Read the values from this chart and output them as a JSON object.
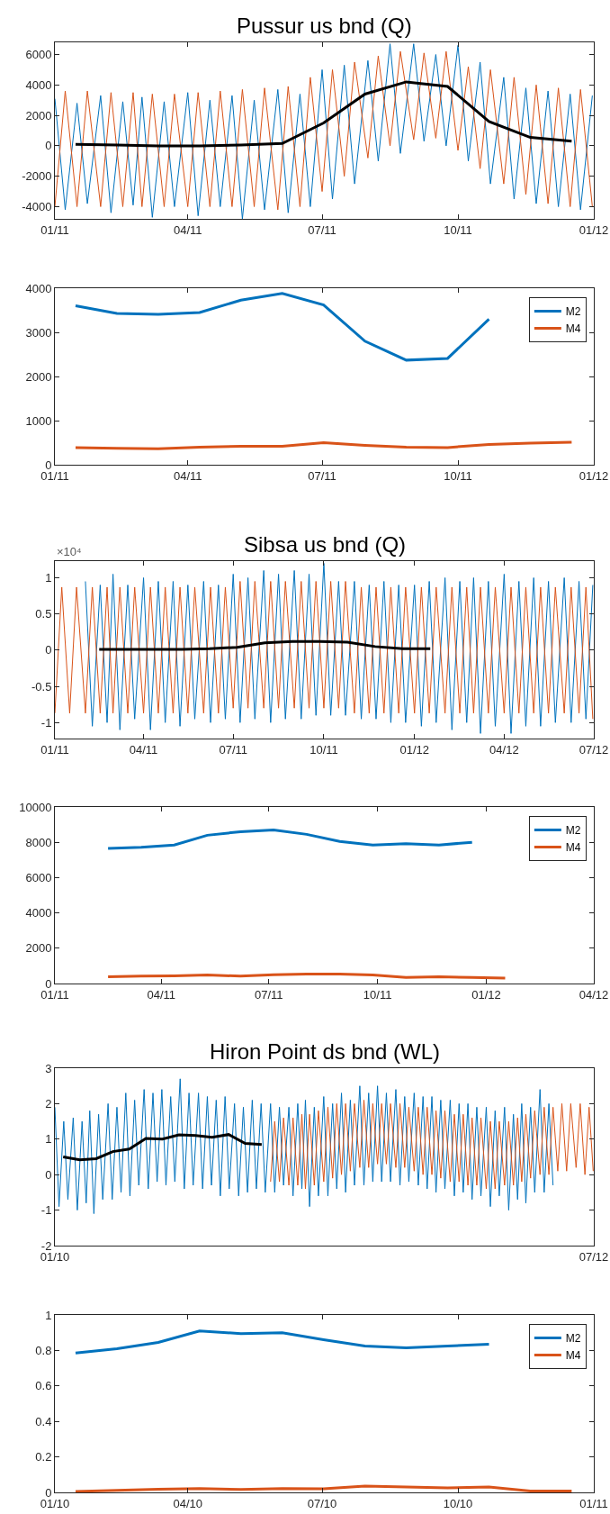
{
  "chart_data": [
    {
      "type": "line",
      "title": "Pussur us bnd (Q)",
      "x": [
        "2011-01-01",
        "2011-01-08",
        "2011-01-16",
        "2011-01-23",
        "2011-02-01",
        "2011-02-08",
        "2011-02-16",
        "2011-02-23",
        "2011-03-01",
        "2011-03-08",
        "2011-03-16",
        "2011-03-23",
        "2011-04-01",
        "2011-04-08",
        "2011-04-16",
        "2011-04-23",
        "2011-05-01",
        "2011-05-08",
        "2011-05-16",
        "2011-05-23",
        "2011-06-01",
        "2011-06-08",
        "2011-06-16",
        "2011-06-23",
        "2011-07-01",
        "2011-07-08",
        "2011-07-16",
        "2011-07-23",
        "2011-08-01",
        "2011-08-08",
        "2011-08-16",
        "2011-08-23",
        "2011-09-01",
        "2011-09-08",
        "2011-09-16",
        "2011-09-23",
        "2011-10-01",
        "2011-10-08",
        "2011-10-16",
        "2011-10-23",
        "2011-11-01",
        "2011-11-08",
        "2011-11-16",
        "2011-11-23",
        "2011-12-01",
        "2011-12-08",
        "2011-12-16",
        "2011-12-23",
        "2011-12-31"
      ],
      "series": [
        {
          "color": "#0072bd",
          "values": [
            3100,
            -4200,
            2800,
            -3800,
            3300,
            -4400,
            2900,
            -3900,
            3200,
            -4700,
            2900,
            -4000,
            3500,
            -4600,
            3000,
            -4000,
            3300,
            -4800,
            3000,
            -4200,
            3700,
            -4400,
            3400,
            -4000,
            5000,
            -3500,
            5300,
            -2500,
            5600,
            -1000,
            6700,
            -500,
            6700,
            300,
            6000,
            0,
            6600,
            -1000,
            5500,
            -2500,
            4500,
            -3500,
            3800,
            -3800,
            3600,
            -4000,
            3400,
            -4200,
            3300
          ]
        },
        {
          "color": "#d95319",
          "values": [
            -4000,
            3600,
            -4000,
            3600,
            -4000,
            3500,
            -4000,
            3500,
            -4000,
            3400,
            -4000,
            3400,
            -4000,
            3500,
            -4000,
            3600,
            -4000,
            3700,
            -4000,
            3800,
            -4200,
            3900,
            -4000,
            4500,
            -3000,
            5000,
            -2000,
            5500,
            -800,
            5900,
            0,
            6200,
            400,
            6100,
            500,
            6200,
            -300,
            5200,
            -1500,
            5000,
            -2500,
            4500,
            -3200,
            4000,
            -3800,
            3800,
            -4000,
            3700,
            -4000
          ]
        },
        {
          "color": "#000000",
          "x": [
            "2011-01-15",
            "2011-02-12",
            "2011-03-12",
            "2011-04-09",
            "2011-05-07",
            "2011-06-04",
            "2011-07-02",
            "2011-07-30",
            "2011-08-27",
            "2011-09-24",
            "2011-10-22",
            "2011-11-19",
            "2011-12-17"
          ],
          "values": [
            100,
            50,
            0,
            0,
            50,
            150,
            1500,
            3400,
            4200,
            3900,
            1600,
            550,
            300
          ]
        }
      ],
      "xlim": [
        "2011-01-01",
        "2012-01-01"
      ],
      "xticks": [
        {
          "value": "2011-01-01",
          "label": "01/11"
        },
        {
          "value": "2011-04-01",
          "label": "04/11"
        },
        {
          "value": "2011-07-01",
          "label": "07/11"
        },
        {
          "value": "2011-10-01",
          "label": "10/11"
        },
        {
          "value": "2012-01-01",
          "label": "01/12"
        }
      ],
      "ylim": [
        -4800,
        6800
      ],
      "yticks": [
        -4000,
        -2000,
        0,
        2000,
        4000,
        6000
      ]
    },
    {
      "type": "line",
      "x": [
        "2011-01-15",
        "2011-02-12",
        "2011-03-12",
        "2011-04-09",
        "2011-05-07",
        "2011-06-04",
        "2011-07-02",
        "2011-07-30",
        "2011-08-27",
        "2011-09-24",
        "2011-10-22",
        "2011-11-19",
        "2011-12-17"
      ],
      "series": [
        {
          "name": "M2",
          "color": "#0072bd",
          "values": [
            3600,
            3430,
            3410,
            3450,
            3730,
            3880,
            3620,
            2800,
            2370,
            2410,
            3300,
            null,
            null
          ]
        },
        {
          "name": "M4",
          "color": "#d95319",
          "values": [
            390,
            370,
            360,
            400,
            420,
            420,
            500,
            440,
            400,
            390,
            460,
            490,
            510
          ]
        }
      ],
      "xlim": [
        "2011-01-01",
        "2012-01-01"
      ],
      "xticks": [
        {
          "value": "2011-01-01",
          "label": "01/11"
        },
        {
          "value": "2011-04-01",
          "label": "04/11"
        },
        {
          "value": "2011-07-01",
          "label": "07/11"
        },
        {
          "value": "2011-10-01",
          "label": "10/11"
        },
        {
          "value": "2012-01-01",
          "label": "01/12"
        }
      ],
      "ylim": [
        0,
        4000
      ],
      "yticks": [
        0,
        1000,
        2000,
        3000,
        4000
      ],
      "legend": "top right"
    },
    {
      "type": "line",
      "title": "Sibsa us bnd (Q)",
      "annotations": [
        "×10⁴"
      ],
      "x": [
        "2011-01-01",
        "2011-01-08",
        "2011-01-16",
        "2011-01-23",
        "2011-02-01",
        "2011-02-08",
        "2011-02-16",
        "2011-02-23",
        "2011-03-01",
        "2011-03-08",
        "2011-03-16",
        "2011-03-23",
        "2011-04-01",
        "2011-04-08",
        "2011-04-16",
        "2011-04-23",
        "2011-05-01",
        "2011-05-08",
        "2011-05-16",
        "2011-05-23",
        "2011-06-01",
        "2011-06-08",
        "2011-06-16",
        "2011-06-23",
        "2011-07-01",
        "2011-07-08",
        "2011-07-16",
        "2011-07-23",
        "2011-08-01",
        "2011-08-08",
        "2011-08-16",
        "2011-08-23",
        "2011-09-01",
        "2011-09-08",
        "2011-09-16",
        "2011-09-23",
        "2011-10-01",
        "2011-10-08",
        "2011-10-16",
        "2011-10-23",
        "2011-11-01",
        "2011-11-08",
        "2011-11-16",
        "2011-11-23",
        "2011-12-01",
        "2011-12-08",
        "2011-12-16",
        "2011-12-23",
        "2012-01-01",
        "2012-01-08",
        "2012-01-16",
        "2012-01-23",
        "2012-02-01",
        "2012-02-08",
        "2012-02-16",
        "2012-02-23",
        "2012-03-01",
        "2012-03-08",
        "2012-03-16",
        "2012-03-23",
        "2012-04-01",
        "2012-04-08",
        "2012-04-16",
        "2012-04-23",
        "2012-05-01",
        "2012-05-08",
        "2012-05-16",
        "2012-05-23",
        "2012-06-01",
        "2012-06-08",
        "2012-06-16",
        "2012-06-23",
        "2012-06-30"
      ],
      "series": [
        {
          "color": "#0072bd",
          "values": [
            null,
            null,
            null,
            null,
            0.95,
            -1.05,
            0.9,
            -1.0,
            1.05,
            -1.1,
            0.9,
            -0.95,
            1.0,
            -1.1,
            0.95,
            -1.0,
            0.95,
            -1.05,
            0.9,
            -0.95,
            0.95,
            -1.0,
            0.9,
            -0.95,
            1.05,
            -1.0,
            1.0,
            -0.95,
            1.1,
            -1.0,
            1.05,
            -0.95,
            1.1,
            -0.95,
            1.05,
            -0.9,
            1.2,
            -0.9,
            0.95,
            -0.9,
            0.95,
            -0.95,
            0.9,
            -0.95,
            0.95,
            -1.0,
            0.9,
            -1.0,
            0.9,
            -1.05,
            0.95,
            -1.0,
            1.0,
            -1.1,
            0.95,
            -1.0,
            1.0,
            -1.15,
            0.95,
            -1.05,
            1.05,
            -1.15,
            0.95,
            -1.05,
            1.0,
            -1.05,
            0.95,
            -1.0,
            1.0,
            -1.0,
            0.95,
            -0.95,
            0.9
          ]
        },
        {
          "color": "#d95319",
          "values": [
            -0.87,
            0.87,
            -0.87,
            0.87,
            -0.87,
            0.87,
            -0.87,
            0.87,
            -0.87,
            0.87,
            -0.87,
            0.87,
            -0.87,
            0.87,
            -0.87,
            0.87,
            -0.87,
            0.87,
            -0.87,
            0.87,
            -0.87,
            0.87,
            -0.87,
            0.87,
            -0.8,
            0.95,
            -0.8,
            0.95,
            -0.8,
            0.95,
            -0.8,
            0.95,
            -0.8,
            0.95,
            -0.8,
            0.95,
            -0.8,
            0.95,
            -0.8,
            0.95,
            -0.87,
            0.87,
            -0.87,
            0.87,
            -0.87,
            0.87,
            -0.87,
            0.87,
            -0.87,
            0.87,
            -0.87,
            0.87,
            -0.87,
            0.87,
            -0.87,
            0.87,
            -0.87,
            0.87,
            -0.87,
            0.87,
            -0.87,
            0.87,
            -0.87,
            0.87,
            -0.87,
            0.87,
            -0.87,
            0.87,
            -0.87,
            0.87,
            -0.87,
            0.87,
            -0.95
          ]
        },
        {
          "color": "#000000",
          "x": [
            "2011-02-15",
            "2011-03-15",
            "2011-04-12",
            "2011-05-10",
            "2011-06-07",
            "2011-07-05",
            "2011-08-02",
            "2011-08-30",
            "2011-09-27",
            "2011-10-25",
            "2011-11-22",
            "2011-12-20",
            "2012-01-17"
          ],
          "values": [
            0.01,
            0.01,
            0.01,
            0.01,
            0.02,
            0.04,
            0.1,
            0.12,
            0.12,
            0.11,
            0.05,
            0.02,
            0.02
          ]
        }
      ],
      "xlim": [
        "2011-01-01",
        "2012-07-01"
      ],
      "xticks": [
        {
          "value": "2011-01-01",
          "label": "01/11"
        },
        {
          "value": "2011-04-01",
          "label": "04/11"
        },
        {
          "value": "2011-07-01",
          "label": "07/11"
        },
        {
          "value": "2011-10-01",
          "label": "10/11"
        },
        {
          "value": "2012-01-01",
          "label": "01/12"
        },
        {
          "value": "2012-04-01",
          "label": "04/12"
        },
        {
          "value": "2012-07-01",
          "label": "07/12"
        }
      ],
      "ylim": [
        -1.22,
        1.23
      ],
      "yticks": [
        -1,
        -0.5,
        0,
        0.5,
        1
      ]
    },
    {
      "type": "line",
      "x": [
        "2011-02-15",
        "2011-03-15",
        "2011-04-12",
        "2011-05-10",
        "2011-06-07",
        "2011-07-05",
        "2011-08-02",
        "2011-08-30",
        "2011-09-27",
        "2011-10-25",
        "2011-11-22",
        "2011-12-20",
        "2012-01-17"
      ],
      "series": [
        {
          "name": "M2",
          "color": "#0072bd",
          "values": [
            7650,
            7720,
            7850,
            8400,
            8600,
            8700,
            8450,
            8050,
            7850,
            7920,
            7850,
            8000,
            null
          ]
        },
        {
          "name": "M4",
          "color": "#d95319",
          "values": [
            380,
            420,
            430,
            480,
            420,
            500,
            540,
            530,
            480,
            350,
            380,
            340,
            300
          ]
        }
      ],
      "xlim": [
        "2011-01-01",
        "2012-04-01"
      ],
      "xticks": [
        {
          "value": "2011-01-01",
          "label": "01/11"
        },
        {
          "value": "2011-04-01",
          "label": "04/11"
        },
        {
          "value": "2011-07-01",
          "label": "07/11"
        },
        {
          "value": "2011-10-01",
          "label": "10/11"
        },
        {
          "value": "2012-01-01",
          "label": "01/12"
        },
        {
          "value": "2012-04-01",
          "label": "04/12"
        }
      ],
      "ylim": [
        0,
        10000
      ],
      "yticks": [
        0,
        2000,
        4000,
        6000,
        8000,
        10000
      ],
      "legend": "top right"
    },
    {
      "type": "line",
      "title": "Hiron Point ds bnd (WL)",
      "x": [
        "2010-01-01",
        "2010-01-08",
        "2010-01-16",
        "2010-01-23",
        "2010-02-01",
        "2010-02-08",
        "2010-02-16",
        "2010-02-23",
        "2010-03-01",
        "2010-03-08",
        "2010-03-16",
        "2010-03-23",
        "2010-04-01",
        "2010-04-08",
        "2010-04-16",
        "2010-04-23",
        "2010-05-01",
        "2010-05-08",
        "2010-05-16",
        "2010-05-23",
        "2010-06-01",
        "2010-06-08",
        "2010-06-16",
        "2010-06-23",
        "2010-07-01",
        "2010-07-08",
        "2010-07-16",
        "2010-07-23",
        "2010-08-01",
        "2010-08-08",
        "2010-08-16",
        "2010-08-23",
        "2010-09-01",
        "2010-09-08",
        "2010-09-16",
        "2010-09-23",
        "2010-10-01",
        "2010-10-08",
        "2010-10-16",
        "2010-10-23",
        "2010-11-01",
        "2010-11-08",
        "2010-11-16",
        "2010-11-23",
        "2010-12-01",
        "2010-12-08",
        "2010-12-16",
        "2010-12-23",
        "2011-01-01",
        "2011-01-08",
        "2011-01-16",
        "2011-01-23",
        "2011-02-01",
        "2011-02-08",
        "2011-02-16",
        "2011-02-23",
        "2011-03-01",
        "2011-03-08",
        "2011-03-16",
        "2011-03-23",
        "2011-04-01",
        "2011-04-08",
        "2011-04-16",
        "2011-04-23",
        "2011-05-01",
        "2011-05-08",
        "2011-05-16",
        "2011-05-23",
        "2011-06-01",
        "2011-06-08",
        "2011-06-16",
        "2011-06-23",
        "2011-07-01",
        "2011-07-08",
        "2011-07-16",
        "2011-07-23",
        "2011-08-01",
        "2011-08-08",
        "2011-08-16",
        "2011-08-23",
        "2011-09-01",
        "2011-09-08",
        "2011-09-16",
        "2011-09-23",
        "2011-10-01",
        "2011-10-08",
        "2011-10-16",
        "2011-10-23",
        "2011-11-01",
        "2011-11-08",
        "2011-11-16",
        "2011-11-23",
        "2011-12-01",
        "2011-12-08",
        "2011-12-16",
        "2011-12-23",
        "2012-01-01",
        "2012-01-08",
        "2012-01-16",
        "2012-01-23",
        "2012-02-01",
        "2012-02-08",
        "2012-02-16",
        "2012-02-23",
        "2012-03-01",
        "2012-03-08",
        "2012-03-16",
        "2012-03-23",
        "2012-04-01",
        "2012-04-08",
        "2012-04-16",
        "2012-04-23",
        "2012-05-01",
        "2012-05-08",
        "2012-05-16",
        "2012-05-23",
        "2012-06-01",
        "2012-06-08",
        "2012-06-16",
        "2012-06-23",
        "2012-06-30"
      ],
      "series": [
        {
          "color": "#0072bd",
          "values": [
            1.9,
            -0.9,
            1.5,
            -0.7,
            1.6,
            -1.0,
            1.5,
            -0.8,
            1.8,
            -1.1,
            1.7,
            -0.7,
            2.0,
            -0.7,
            1.9,
            -0.5,
            2.3,
            -0.6,
            2.1,
            -0.3,
            2.4,
            -0.4,
            2.3,
            -0.2,
            2.4,
            -0.3,
            2.2,
            -0.2,
            2.7,
            -0.4,
            2.3,
            -0.3,
            2.3,
            -0.4,
            2.2,
            -0.3,
            2.1,
            -0.6,
            2.2,
            -0.4,
            2.0,
            -0.6,
            1.9,
            -0.5,
            2.1,
            -0.4,
            2.0,
            -0.5,
            2.0,
            -0.5,
            1.9,
            -0.3,
            1.9,
            -0.6,
            2.0,
            -0.4,
            2.1,
            -0.9,
            1.9,
            -0.6,
            2.2,
            -0.6,
            2.0,
            -0.4,
            2.3,
            -0.5,
            2.1,
            -0.3,
            2.5,
            -0.3,
            2.3,
            -0.2,
            2.5,
            -0.2,
            2.3,
            -0.2,
            2.4,
            -0.3,
            2.2,
            -0.2,
            2.3,
            -0.3,
            2.2,
            -0.4,
            2.2,
            -0.5,
            2.1,
            -0.4,
            2.1,
            -0.6,
            2.0,
            -0.5,
            2.0,
            -0.7,
            1.9,
            -0.6,
            1.9,
            -0.9,
            1.8,
            -0.6,
            1.9,
            -1.0,
            1.7,
            -0.7,
            2.0,
            -0.8,
            1.9,
            -0.5,
            2.4,
            -0.5,
            2.0,
            -0.3,
            null,
            null,
            null,
            null,
            null,
            null,
            null,
            null,
            null
          ]
        },
        {
          "color": "#d95319",
          "values": [
            null,
            null,
            null,
            null,
            null,
            null,
            null,
            null,
            null,
            null,
            null,
            null,
            null,
            null,
            null,
            null,
            null,
            null,
            null,
            null,
            null,
            null,
            null,
            null,
            null,
            null,
            null,
            null,
            null,
            null,
            null,
            null,
            null,
            null,
            null,
            null,
            null,
            null,
            null,
            null,
            null,
            null,
            null,
            null,
            null,
            null,
            null,
            null,
            -0.2,
            1.5,
            -0.2,
            1.6,
            -0.3,
            1.6,
            -0.3,
            1.7,
            -0.4,
            1.7,
            -0.3,
            1.8,
            -0.2,
            1.9,
            -0.1,
            2.0,
            0.0,
            2.0,
            0.1,
            2.0,
            0.2,
            2.1,
            0.2,
            2.0,
            0.3,
            2.0,
            0.3,
            2.0,
            0.2,
            2.0,
            0.2,
            1.9,
            0.1,
            1.9,
            0.0,
            1.9,
            0.0,
            1.8,
            -0.1,
            1.8,
            -0.2,
            1.7,
            -0.2,
            1.7,
            -0.3,
            1.6,
            -0.3,
            1.6,
            -0.4,
            1.5,
            -0.4,
            1.5,
            -0.3,
            1.5,
            -0.3,
            1.6,
            -0.2,
            1.7,
            -0.1,
            1.8,
            0.0,
            1.9,
            0.0,
            1.9,
            0.1,
            2.0,
            0.1,
            2.0,
            0.2,
            2.0,
            0.0,
            1.9,
            0.1
          ]
        },
        {
          "color": "#000000",
          "x": [
            "2010-01-15",
            "2010-02-12",
            "2010-03-12",
            "2010-04-09",
            "2010-05-07",
            "2010-06-04",
            "2010-07-02",
            "2010-07-30",
            "2010-08-27",
            "2010-09-24",
            "2010-10-22",
            "2010-11-19",
            "2010-12-17"
          ],
          "values": [
            0.5,
            0.42,
            0.45,
            0.65,
            0.72,
            1.02,
            1.0,
            1.12,
            1.1,
            1.05,
            1.13,
            0.88,
            0.85
          ]
        }
      ],
      "xlim": [
        "2010-01-01",
        "2012-07-01"
      ],
      "xticks": [
        {
          "value": "2010-01-01",
          "label": "01/10"
        },
        {
          "value": "2012-07-01",
          "label": "07/12"
        }
      ],
      "ylim": [
        -2,
        3
      ],
      "yticks": [
        -2,
        -1,
        0,
        1,
        2,
        3
      ]
    },
    {
      "type": "line",
      "x": [
        "2010-01-15",
        "2010-02-12",
        "2010-03-12",
        "2010-04-09",
        "2010-05-07",
        "2010-06-04",
        "2010-07-02",
        "2010-07-30",
        "2010-08-27",
        "2010-09-24",
        "2010-10-22",
        "2010-11-19",
        "2010-12-17"
      ],
      "series": [
        {
          "name": "M2",
          "color": "#0072bd",
          "values": [
            0.785,
            0.81,
            0.845,
            0.91,
            0.895,
            0.9,
            0.86,
            0.825,
            0.815,
            0.825,
            0.835,
            null,
            null
          ]
        },
        {
          "name": "M4",
          "color": "#d95319",
          "values": [
            0.005,
            0.012,
            0.018,
            0.022,
            0.016,
            0.022,
            0.02,
            0.035,
            0.03,
            0.025,
            0.03,
            0.008,
            0.008
          ]
        }
      ],
      "xlim": [
        "2010-01-01",
        "2011-01-01"
      ],
      "xticks": [
        {
          "value": "2010-01-01",
          "label": "01/10"
        },
        {
          "value": "2010-04-01",
          "label": "04/10"
        },
        {
          "value": "2010-07-01",
          "label": "07/10"
        },
        {
          "value": "2010-10-01",
          "label": "10/10"
        },
        {
          "value": "2011-01-01",
          "label": "01/11"
        }
      ],
      "ylim": [
        0,
        1
      ],
      "yticks": [
        0,
        0.2,
        0.4,
        0.6,
        0.8,
        1
      ],
      "legend": "top right"
    }
  ]
}
